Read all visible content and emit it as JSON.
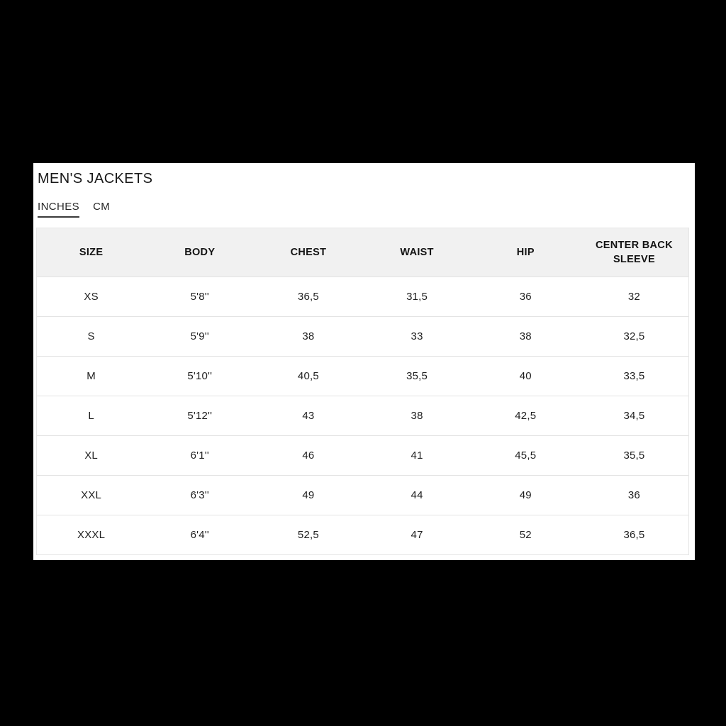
{
  "title": "MEN'S JACKETS",
  "tabs": [
    {
      "label": "INCHES",
      "active": true
    },
    {
      "label": "CM",
      "active": false
    }
  ],
  "table": {
    "columns": [
      "SIZE",
      "BODY",
      "CHEST",
      "WAIST",
      "HIP",
      "CENTER BACK SLEEVE"
    ],
    "rows": [
      [
        "XS",
        "5'8''",
        "36,5",
        "31,5",
        "36",
        "32"
      ],
      [
        "S",
        "5'9''",
        "38",
        "33",
        "38",
        "32,5"
      ],
      [
        "M",
        "5'10''",
        "40,5",
        "35,5",
        "40",
        "33,5"
      ],
      [
        "L",
        "5'12''",
        "43",
        "38",
        "42,5",
        "34,5"
      ],
      [
        "XL",
        "6'1''",
        "46",
        "41",
        "45,5",
        "35,5"
      ],
      [
        "XXL",
        "6'3''",
        "49",
        "44",
        "49",
        "36"
      ],
      [
        "XXXL",
        "6'4''",
        "52,5",
        "47",
        "52",
        "36,5"
      ]
    ]
  },
  "colors": {
    "page_background": "#000000",
    "card_background": "#ffffff",
    "table_header_background": "#f1f1f1",
    "divider": "#e3e3e3",
    "text": "#1a1a1a"
  }
}
